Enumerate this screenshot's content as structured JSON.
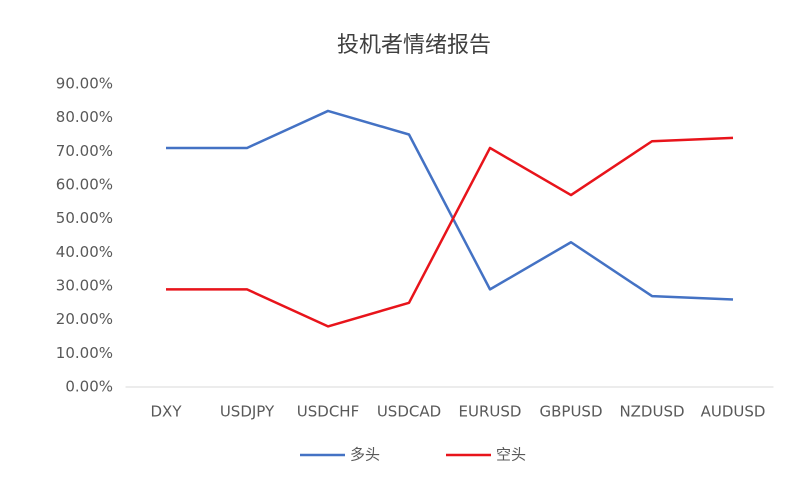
{
  "chart_data": {
    "type": "line",
    "title": "投机者情绪报告",
    "categories": [
      "DXY",
      "USDJPY",
      "USDCHF",
      "USDCAD",
      "EURUSD",
      "GBPUSD",
      "NZDUSD",
      "AUDUSD"
    ],
    "series": [
      {
        "name": "多头",
        "color": "#4472c4",
        "values": [
          71,
          71,
          82,
          75,
          29,
          43,
          27,
          26
        ]
      },
      {
        "name": "空头",
        "color": "#e8141b",
        "values": [
          29,
          29,
          18,
          25,
          71,
          57,
          73,
          74
        ]
      }
    ],
    "ylim": [
      0,
      90
    ],
    "yticks": [
      {
        "value": 0,
        "label": "0.00%"
      },
      {
        "value": 10,
        "label": "10.00%"
      },
      {
        "value": 20,
        "label": "20.00%"
      },
      {
        "value": 30,
        "label": "30.00%"
      },
      {
        "value": 40,
        "label": "40.00%"
      },
      {
        "value": 50,
        "label": "50.00%"
      },
      {
        "value": 60,
        "label": "60.00%"
      },
      {
        "value": 70,
        "label": "70.00%"
      },
      {
        "value": 80,
        "label": "80.00%"
      },
      {
        "value": 90,
        "label": "90.00%"
      }
    ],
    "grid": false,
    "legend": "bottom"
  }
}
